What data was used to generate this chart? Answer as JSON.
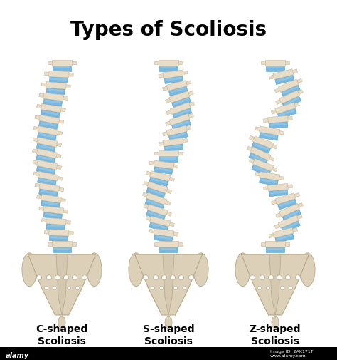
{
  "title": "Types of Scoliosis",
  "title_fontsize": 20,
  "title_fontweight": "bold",
  "bg_color": "#ffffff",
  "bone_color": "#e8ddc8",
  "bone_edge": "#c8b898",
  "bone_shadow": "#d8ccb0",
  "disc_color": "#78b8e0",
  "disc_edge": "#58a0c8",
  "disc_highlight": "#a8d0ee",
  "pelvis_color": "#ddd0b8",
  "pelvis_edge": "#b8a888",
  "labels": [
    "C-shaped\nScoliosis",
    "S-shaped\nScoliosis",
    "Z-shaped\nScoliosis"
  ],
  "label_fontsize": 10,
  "label_fontweight": "bold",
  "spine_types": [
    "C",
    "S",
    "Z"
  ],
  "num_vertebrae": 17,
  "watermark": "2AK171T"
}
